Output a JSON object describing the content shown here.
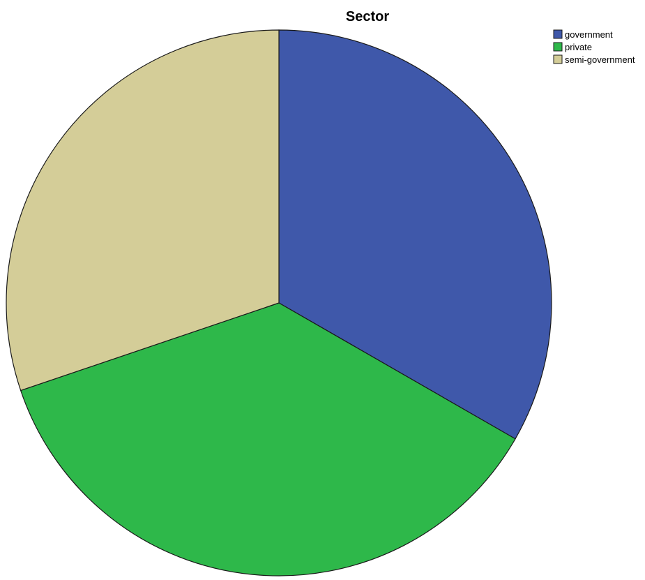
{
  "chart_data": {
    "type": "pie",
    "title": "Sector",
    "categories": [
      "government",
      "private",
      "semi-government"
    ],
    "values": [
      33.3,
      36.5,
      30.2
    ],
    "colors": [
      "#3f58aa",
      "#2eb84a",
      "#d4cd98"
    ],
    "start_angle_deg": 0,
    "direction": "clockwise",
    "legend": {
      "position": "top-right"
    },
    "data_labels": false
  }
}
